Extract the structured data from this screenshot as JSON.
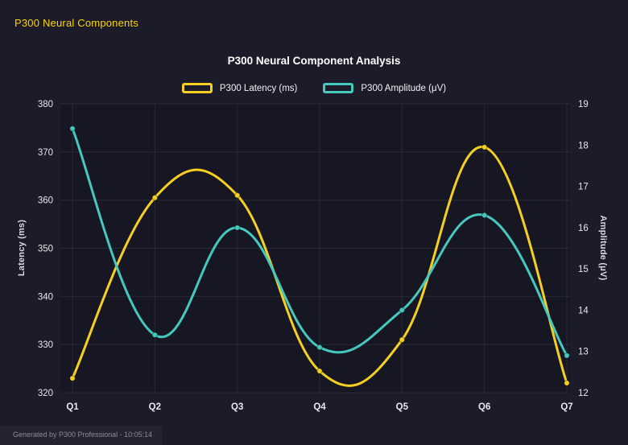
{
  "header": {
    "title": "P300 Neural Components"
  },
  "footer": {
    "text": "Generated by P300 Professional - 10:05:14"
  },
  "colors": {
    "background": "#1b1b29",
    "header_accent": "#ffd400",
    "latency_series": "#f5d020",
    "amplitude_series": "#45c8be",
    "grid": "rgba(255,255,255,0.08)"
  },
  "chart_data": {
    "type": "line",
    "title": "P300 Neural Component Analysis",
    "categories": [
      "Q1",
      "Q2",
      "Q3",
      "Q4",
      "Q5",
      "Q6",
      "Q7"
    ],
    "series": [
      {
        "name": "P300 Latency (ms)",
        "axis": "left",
        "color": "#f5d020",
        "values": [
          323,
          360.5,
          361,
          324.5,
          331,
          371,
          322
        ]
      },
      {
        "name": "P300 Amplitude (μV)",
        "axis": "right",
        "color": "#45c8be",
        "values": [
          18.4,
          13.4,
          16.0,
          13.1,
          14.0,
          16.3,
          12.9
        ]
      }
    ],
    "left_axis": {
      "label": "Latency (ms)",
      "min": 320,
      "max": 380,
      "step": 10
    },
    "right_axis": {
      "label": "Amplitude (μV)",
      "min": 12,
      "max": 19,
      "step": 1
    },
    "grid": true,
    "legend_position": "top",
    "line_style": "smooth"
  }
}
